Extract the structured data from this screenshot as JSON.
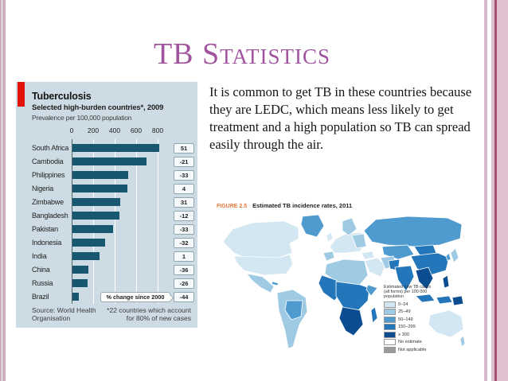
{
  "slide": {
    "title": "TB Statistics"
  },
  "body_text": "It is common to get TB in these countries because they are LEDC, which means less likely to get treatment and a high population so TB can spread easily through the air.",
  "colors": {
    "title_purple": "#a0549e",
    "chart_background": "#cddce4",
    "chart_accent_red": "#e3120b",
    "bar_color": "#17576f",
    "stripe_pink": "#dfc0ce",
    "stripe_dark_rose": "#a5506e",
    "figure_label_orange": "#e2763c"
  },
  "chart_data": [
    {
      "type": "bar",
      "orientation": "horizontal",
      "title": "Tuberculosis",
      "subtitle": "Selected high-burden countries*, 2009",
      "units_label": "Prevalence per 100,000 population",
      "categories": [
        "South Africa",
        "Cambodia",
        "Philippines",
        "Nigeria",
        "Zimbabwe",
        "Bangladesh",
        "Pakistan",
        "Indonesia",
        "India",
        "China",
        "Russia",
        "Brazil"
      ],
      "values": [
        810,
        690,
        520,
        510,
        445,
        435,
        375,
        300,
        255,
        150,
        140,
        60
      ],
      "pct_change_since_2000": [
        51,
        -21,
        -33,
        4,
        31,
        -12,
        -33,
        -32,
        1,
        -36,
        -26,
        -44
      ],
      "callout_label": "% change since 2000",
      "x_ticks": [
        0,
        200,
        400,
        600,
        800
      ],
      "xlim": [
        0,
        870
      ],
      "grid": true,
      "source": "Source: World Health\nOrganisation",
      "footnote": "*22 countries which account\nfor 80% of new cases"
    },
    {
      "type": "heatmap",
      "subtype": "world-choropleth",
      "figure_label": "FIGURE 2.5",
      "title": "Estimated TB incidence rates, 2011",
      "legend_position": "bottom-right",
      "legend_title": "Estimated new TB cases (all forms) per 100 000 population",
      "legend": [
        {
          "label": "0–24",
          "color": "#d3e7f2"
        },
        {
          "label": "25–49",
          "color": "#9fcae4"
        },
        {
          "label": "50–149",
          "color": "#4f9bcf"
        },
        {
          "label": "150–299",
          "color": "#2276b9"
        },
        {
          "label": "≥ 300",
          "color": "#0b4d90"
        },
        {
          "label": "No estimate",
          "color": "#ffffff"
        },
        {
          "label": "Not applicable",
          "color": "#9b9b9b"
        }
      ],
      "regions_reading": {
        "North America": "0–24",
        "Greenland": "50–149",
        "Mexico / Central America": "25–49",
        "South America": "25–49 with 50–149 patches",
        "Western Europe": "0–24",
        "Eastern Europe": "25–49",
        "Russia": "50–149",
        "North Africa / Middle East": "0–24 to 50–149",
        "Sub-Saharan Africa": "150–299",
        "Southern Africa": "≥ 300",
        "Central Asia / China": "50–149 to 150–299",
        "India / South-East Asia": "150–299 to ≥ 300",
        "Australia": "0–24"
      }
    }
  ]
}
